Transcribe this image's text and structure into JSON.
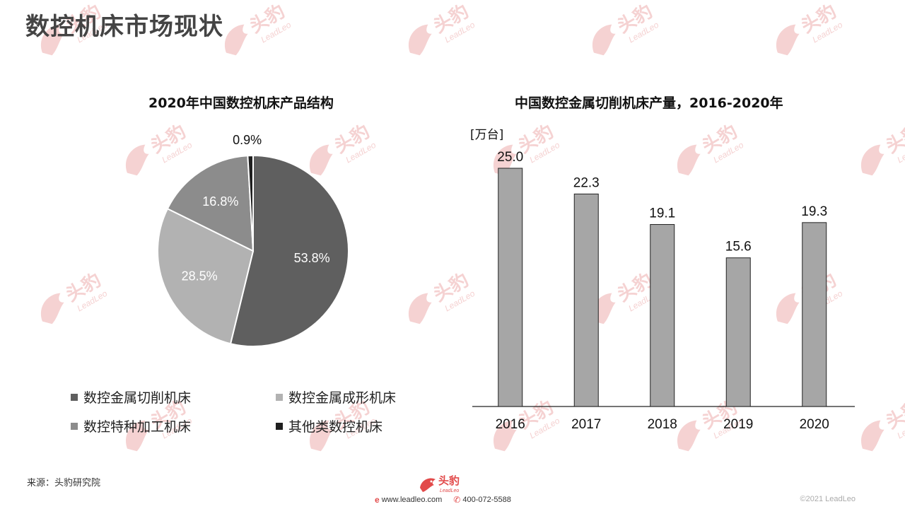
{
  "page": {
    "title": "数控机床市场现状",
    "source": "来源：头豹研究院",
    "copyright": "©2021 LeadLeo"
  },
  "footer": {
    "website": "www.leadleo.com",
    "phone": "400-072-5588",
    "logo_cn": "头豹",
    "logo_en": "LeadLeo",
    "icons": [
      "web-icon",
      "phone-icon"
    ]
  },
  "watermark": {
    "cn": "头豹",
    "en": "LeadLeo"
  },
  "colors": {
    "accent": "#e24a4a",
    "watermark": "#f5d2d2",
    "bar": "#a6a6a6",
    "slice1": "#5f5f5f",
    "slice2": "#b2b2b2",
    "slice3": "#8c8c8c",
    "slice4": "#1f1f1f"
  },
  "chart_data": [
    {
      "type": "pie",
      "title": "2020年中国数控机床产品结构",
      "slices": [
        {
          "label": "数控金属切削机床",
          "value": 53.8,
          "value_label": "53.8%",
          "color": "#5f5f5f"
        },
        {
          "label": "数控金属成形机床",
          "value": 28.5,
          "value_label": "28.5%",
          "color": "#b2b2b2"
        },
        {
          "label": "数控特种加工机床",
          "value": 16.8,
          "value_label": "16.8%",
          "color": "#8c8c8c"
        },
        {
          "label": "其他类数控机床",
          "value": 0.9,
          "value_label": "0.9%",
          "color": "#1f1f1f"
        }
      ],
      "legend_position": "bottom"
    },
    {
      "type": "bar",
      "title": "中国数控金属切削机床产量，2016-2020年",
      "ylabel": "[万台]",
      "categories": [
        "2016",
        "2017",
        "2018",
        "2019",
        "2020"
      ],
      "values": [
        25.0,
        22.3,
        19.1,
        15.6,
        19.3
      ],
      "value_labels": [
        "25.0",
        "22.3",
        "19.1",
        "15.6",
        "19.3"
      ],
      "ylim": [
        0,
        25
      ],
      "grid": false,
      "color": "#a6a6a6"
    }
  ]
}
